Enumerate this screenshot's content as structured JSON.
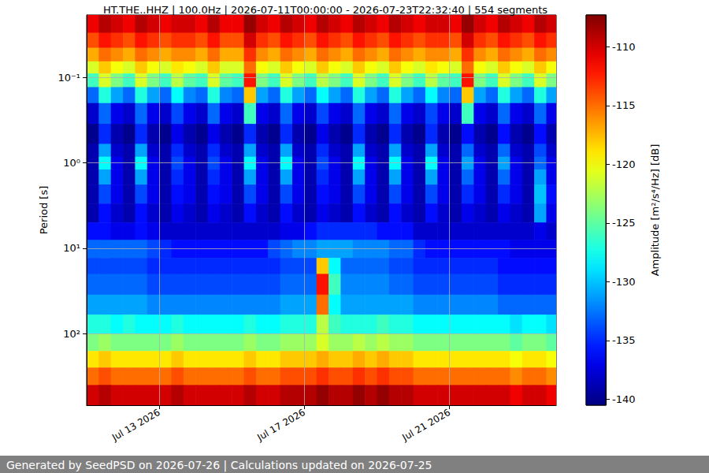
{
  "chart_data": {
    "type": "heatmap",
    "title": "HT.THE..HHZ | 100.0Hz | 2026-07-11T00:00:00 - 2026-07-23T22:32:40 | 554 segments",
    "y_label": "Period [s]",
    "colorbar_label": "Amplitude [m²/s⁴/Hz] [dB]",
    "footer": "Generated by SeedPSD on 2026-07-26 | Calculations updated on 2026-07-25",
    "log": "y",
    "grid": true,
    "xlim": [
      "2026-07-11T00:00:00",
      "2026-07-23T22:32:40"
    ],
    "xticks": [
      {
        "value": "2026-07-13T00:00:00",
        "label": "Jul 13 2026"
      },
      {
        "value": "2026-07-17T00:00:00",
        "label": "Jul 17 2026"
      },
      {
        "value": "2026-07-21T00:00:00",
        "label": "Jul 21 2026"
      }
    ],
    "ylim": [
      0.0186,
      690
    ],
    "yticks": [
      {
        "value": 0.1,
        "label": "10⁻¹"
      },
      {
        "value": 1,
        "label": "10⁰"
      },
      {
        "value": 10,
        "label": "10¹"
      },
      {
        "value": 100,
        "label": "10²"
      }
    ],
    "colorbar_lim": [
      -140.5,
      -107.3
    ],
    "colorbar_ticks": [
      -140,
      -135,
      -130,
      -125,
      -120,
      -115,
      -110
    ],
    "time_bins": [
      "2026-07-11T00:00:00",
      "2026-07-11T08:00:00",
      "2026-07-11T16:00:00",
      "2026-07-12T00:00:00",
      "2026-07-12T08:00:00",
      "2026-07-12T16:00:00",
      "2026-07-13T00:00:00",
      "2026-07-13T08:00:00",
      "2026-07-13T16:00:00",
      "2026-07-14T00:00:00",
      "2026-07-14T08:00:00",
      "2026-07-14T16:00:00",
      "2026-07-15T00:00:00",
      "2026-07-15T08:00:00",
      "2026-07-15T16:00:00",
      "2026-07-16T00:00:00",
      "2026-07-16T08:00:00",
      "2026-07-16T16:00:00",
      "2026-07-17T00:00:00",
      "2026-07-17T08:00:00",
      "2026-07-17T16:00:00",
      "2026-07-18T00:00:00",
      "2026-07-18T08:00:00",
      "2026-07-18T16:00:00",
      "2026-07-19T00:00:00",
      "2026-07-19T08:00:00",
      "2026-07-19T16:00:00",
      "2026-07-20T00:00:00",
      "2026-07-20T08:00:00",
      "2026-07-20T16:00:00",
      "2026-07-21T00:00:00",
      "2026-07-21T08:00:00",
      "2026-07-21T16:00:00",
      "2026-07-22T00:00:00",
      "2026-07-22T08:00:00",
      "2026-07-22T16:00:00",
      "2026-07-23T00:00:00",
      "2026-07-23T08:00:00",
      "2026-07-23T16:00:00",
      "2026-07-24T00:00:00"
    ],
    "period_bins": [
      0.0186,
      0.03,
      0.045,
      0.065,
      0.09,
      0.13,
      0.2,
      0.35,
      0.6,
      0.85,
      1.2,
      1.8,
      3,
      5,
      8,
      13,
      20,
      35,
      60,
      100,
      160,
      250,
      400,
      690
    ],
    "cells": [
      [
        -111,
        -109,
        -110,
        -111,
        -109,
        -110,
        -111,
        -110,
        -110,
        -111,
        -109,
        -111,
        -111,
        -108,
        -110,
        -111,
        -109,
        -110,
        -111,
        -109,
        -110,
        -111,
        -109,
        -110,
        -111,
        -109,
        -110,
        -111,
        -110,
        -110,
        -111,
        -108,
        -110,
        -111,
        -109,
        -110,
        -111,
        -109,
        -110
      ],
      [
        -114,
        -112,
        -113,
        -114,
        -112,
        -113,
        -114,
        -113,
        -113,
        -114,
        -112,
        -114,
        -114,
        -110,
        -113,
        -114,
        -112,
        -113,
        -114,
        -112,
        -113,
        -114,
        -112,
        -113,
        -114,
        -112,
        -113,
        -114,
        -113,
        -113,
        -114,
        -110,
        -113,
        -114,
        -112,
        -113,
        -114,
        -112,
        -113
      ],
      [
        -117,
        -115,
        -116,
        -117,
        -115,
        -116,
        -117,
        -116,
        -116,
        -117,
        -115,
        -117,
        -117,
        -113,
        -116,
        -117,
        -115,
        -116,
        -117,
        -115,
        -116,
        -117,
        -115,
        -116,
        -117,
        -115,
        -116,
        -117,
        -116,
        -116,
        -117,
        -113,
        -116,
        -117,
        -115,
        -116,
        -117,
        -115,
        -116
      ],
      [
        -121,
        -118,
        -120,
        -121,
        -118,
        -120,
        -121,
        -119,
        -120,
        -121,
        -118,
        -121,
        -121,
        -115,
        -120,
        -121,
        -118,
        -120,
        -121,
        -118,
        -120,
        -121,
        -118,
        -120,
        -121,
        -118,
        -120,
        -121,
        -119,
        -120,
        -121,
        -115,
        -120,
        -121,
        -118,
        -120,
        -121,
        -118,
        -120
      ],
      [
        -126,
        -121,
        -124,
        -126,
        -121,
        -124,
        -126,
        -122,
        -125,
        -126,
        -121,
        -125,
        -126,
        -112,
        -124,
        -126,
        -121,
        -124,
        -126,
        -122,
        -124,
        -126,
        -121,
        -124,
        -126,
        -121,
        -124,
        -126,
        -122,
        -125,
        -126,
        -112,
        -124,
        -126,
        -121,
        -124,
        -126,
        -121,
        -124
      ],
      [
        -133,
        -127,
        -131,
        -133,
        -127,
        -131,
        -133,
        -128,
        -132,
        -133,
        -127,
        -132,
        -133,
        -118,
        -131,
        -133,
        -127,
        -131,
        -133,
        -128,
        -131,
        -133,
        -127,
        -131,
        -133,
        -127,
        -131,
        -133,
        -128,
        -132,
        -133,
        -118,
        -131,
        -133,
        -127,
        -131,
        -133,
        -127,
        -131
      ],
      [
        -138,
        -133,
        -137,
        -138,
        -133,
        -137,
        -138,
        -134,
        -137,
        -138,
        -133,
        -137,
        -138,
        -126,
        -137,
        -138,
        -133,
        -137,
        -138,
        -134,
        -137,
        -138,
        -133,
        -137,
        -138,
        -133,
        -137,
        -138,
        -134,
        -137,
        -138,
        -126,
        -137,
        -138,
        -133,
        -137,
        -138,
        -133,
        -137
      ],
      [
        -140,
        -135,
        -139,
        -140,
        -135,
        -139,
        -140,
        -137,
        -139,
        -140,
        -137,
        -139,
        -140,
        -135,
        -139,
        -140,
        -135,
        -139,
        -140,
        -137,
        -139,
        -140,
        -135,
        -139,
        -140,
        -135,
        -139,
        -140,
        -135,
        -139,
        -140,
        -136,
        -139,
        -140,
        -136,
        -139,
        -140,
        -136,
        -139
      ],
      [
        -139,
        -131,
        -138,
        -139,
        -131,
        -138,
        -139,
        -135,
        -138,
        -139,
        -135,
        -138,
        -139,
        -131,
        -138,
        -139,
        -131,
        -138,
        -139,
        -135,
        -138,
        -139,
        -131,
        -138,
        -139,
        -131,
        -138,
        -139,
        -131,
        -138,
        -139,
        -133,
        -138,
        -139,
        -133,
        -138,
        -139,
        -134,
        -138
      ],
      [
        -139,
        -128,
        -137,
        -139,
        -128,
        -137,
        -139,
        -134,
        -137,
        -139,
        -134,
        -137,
        -139,
        -128,
        -137,
        -139,
        -128,
        -137,
        -139,
        -134,
        -137,
        -139,
        -128,
        -137,
        -139,
        -128,
        -137,
        -139,
        -128,
        -137,
        -139,
        -131,
        -137,
        -139,
        -131,
        -137,
        -139,
        -133,
        -137
      ],
      [
        -139,
        -131,
        -137,
        -139,
        -131,
        -137,
        -139,
        -135,
        -137,
        -139,
        -135,
        -137,
        -139,
        -131,
        -137,
        -139,
        -131,
        -137,
        -139,
        -135,
        -137,
        -139,
        -131,
        -137,
        -139,
        -131,
        -137,
        -139,
        -131,
        -137,
        -139,
        -133,
        -137,
        -139,
        -133,
        -137,
        -139,
        -131,
        -137
      ],
      [
        -139,
        -134,
        -137,
        -139,
        -134,
        -137,
        -139,
        -136,
        -137,
        -139,
        -136,
        -137,
        -139,
        -134,
        -137,
        -139,
        -134,
        -137,
        -139,
        -136,
        -137,
        -139,
        -134,
        -137,
        -139,
        -134,
        -137,
        -139,
        -134,
        -137,
        -139,
        -135,
        -137,
        -139,
        -135,
        -137,
        -139,
        -130,
        -136
      ],
      [
        -139,
        -136,
        -138,
        -139,
        -136,
        -138,
        -139,
        -137,
        -138,
        -139,
        -137,
        -138,
        -139,
        -136,
        -138,
        -139,
        -136,
        -138,
        -139,
        -137,
        -138,
        -139,
        -136,
        -138,
        -139,
        -136,
        -138,
        -139,
        -136,
        -138,
        -139,
        -137,
        -138,
        -139,
        -137,
        -138,
        -139,
        -131,
        -137
      ],
      [
        -136,
        -136,
        -137,
        -137,
        -136,
        -137,
        -138,
        -138,
        -138,
        -138,
        -138,
        -138,
        -138,
        -138,
        -138,
        -138,
        -137,
        -137,
        -136,
        -135,
        -135,
        -135,
        -135,
        -135,
        -136,
        -136,
        -136,
        -138,
        -138,
        -138,
        -138,
        -138,
        -138,
        -138,
        -138,
        -138,
        -138,
        -137,
        -138
      ],
      [
        -133,
        -133,
        -133,
        -133,
        -133,
        -134,
        -135,
        -136,
        -136,
        -136,
        -136,
        -136,
        -136,
        -136,
        -136,
        -134,
        -133,
        -132,
        -132,
        -131,
        -131,
        -131,
        -132,
        -132,
        -132,
        -133,
        -133,
        -135,
        -136,
        -136,
        -136,
        -136,
        -136,
        -136,
        -136,
        -137,
        -137,
        -137,
        -137
      ],
      [
        -134,
        -134,
        -134,
        -134,
        -134,
        -135,
        -135,
        -135,
        -135,
        -135,
        -135,
        -135,
        -135,
        -135,
        -135,
        -135,
        -134,
        -134,
        -134,
        -118,
        -128,
        -133,
        -133,
        -133,
        -133,
        -134,
        -134,
        -135,
        -135,
        -135,
        -135,
        -135,
        -135,
        -135,
        -136,
        -136,
        -136,
        -136,
        -136
      ],
      [
        -133,
        -133,
        -133,
        -133,
        -133,
        -134,
        -134,
        -134,
        -134,
        -134,
        -134,
        -134,
        -134,
        -134,
        -134,
        -134,
        -133,
        -133,
        -133,
        -112,
        -126,
        -132,
        -132,
        -132,
        -132,
        -133,
        -133,
        -134,
        -134,
        -134,
        -134,
        -134,
        -134,
        -134,
        -135,
        -135,
        -135,
        -135,
        -135
      ],
      [
        -131,
        -131,
        -131,
        -131,
        -131,
        -132,
        -132,
        -132,
        -132,
        -132,
        -132,
        -132,
        -132,
        -132,
        -132,
        -132,
        -131,
        -131,
        -131,
        -115,
        -128,
        -131,
        -131,
        -131,
        -131,
        -131,
        -131,
        -132,
        -132,
        -132,
        -132,
        -132,
        -132,
        -132,
        -133,
        -133,
        -133,
        -133,
        -133
      ],
      [
        -127,
        -127,
        -128,
        -127,
        -128,
        -128,
        -128,
        -127,
        -128,
        -128,
        -128,
        -128,
        -128,
        -127,
        -128,
        -128,
        -127,
        -127,
        -127,
        -122,
        -126,
        -127,
        -127,
        -127,
        -126,
        -127,
        -127,
        -128,
        -128,
        -128,
        -128,
        -128,
        -128,
        -128,
        -128,
        -129,
        -128,
        -128,
        -129
      ],
      [
        -124,
        -123,
        -124,
        -124,
        -124,
        -124,
        -124,
        -123,
        -124,
        -124,
        -124,
        -124,
        -124,
        -123,
        -124,
        -124,
        -123,
        -123,
        -123,
        -121,
        -123,
        -123,
        -122,
        -123,
        -122,
        -123,
        -123,
        -124,
        -124,
        -124,
        -124,
        -124,
        -124,
        -124,
        -124,
        -125,
        -124,
        -124,
        -125
      ],
      [
        -119,
        -118,
        -119,
        -119,
        -119,
        -119,
        -119,
        -118,
        -119,
        -119,
        -119,
        -119,
        -119,
        -118,
        -119,
        -119,
        -118,
        -118,
        -118,
        -117,
        -118,
        -118,
        -117,
        -118,
        -117,
        -118,
        -118,
        -119,
        -119,
        -119,
        -119,
        -119,
        -119,
        -119,
        -119,
        -120,
        -119,
        -119,
        -120
      ],
      [
        -115,
        -114,
        -115,
        -115,
        -115,
        -115,
        -115,
        -114,
        -115,
        -115,
        -115,
        -115,
        -115,
        -114,
        -115,
        -115,
        -114,
        -114,
        -114,
        -113,
        -114,
        -114,
        -113,
        -114,
        -113,
        -114,
        -114,
        -115,
        -115,
        -115,
        -115,
        -115,
        -115,
        -115,
        -115,
        -116,
        -115,
        -115,
        -116
      ],
      [
        -110,
        -109,
        -110,
        -110,
        -110,
        -110,
        -110,
        -109,
        -110,
        -110,
        -110,
        -110,
        -110,
        -109,
        -110,
        -110,
        -109,
        -109,
        -109,
        -108,
        -109,
        -109,
        -108,
        -109,
        -108,
        -109,
        -109,
        -110,
        -110,
        -110,
        -110,
        -110,
        -110,
        -110,
        -110,
        -111,
        -110,
        -110,
        -111
      ]
    ]
  }
}
